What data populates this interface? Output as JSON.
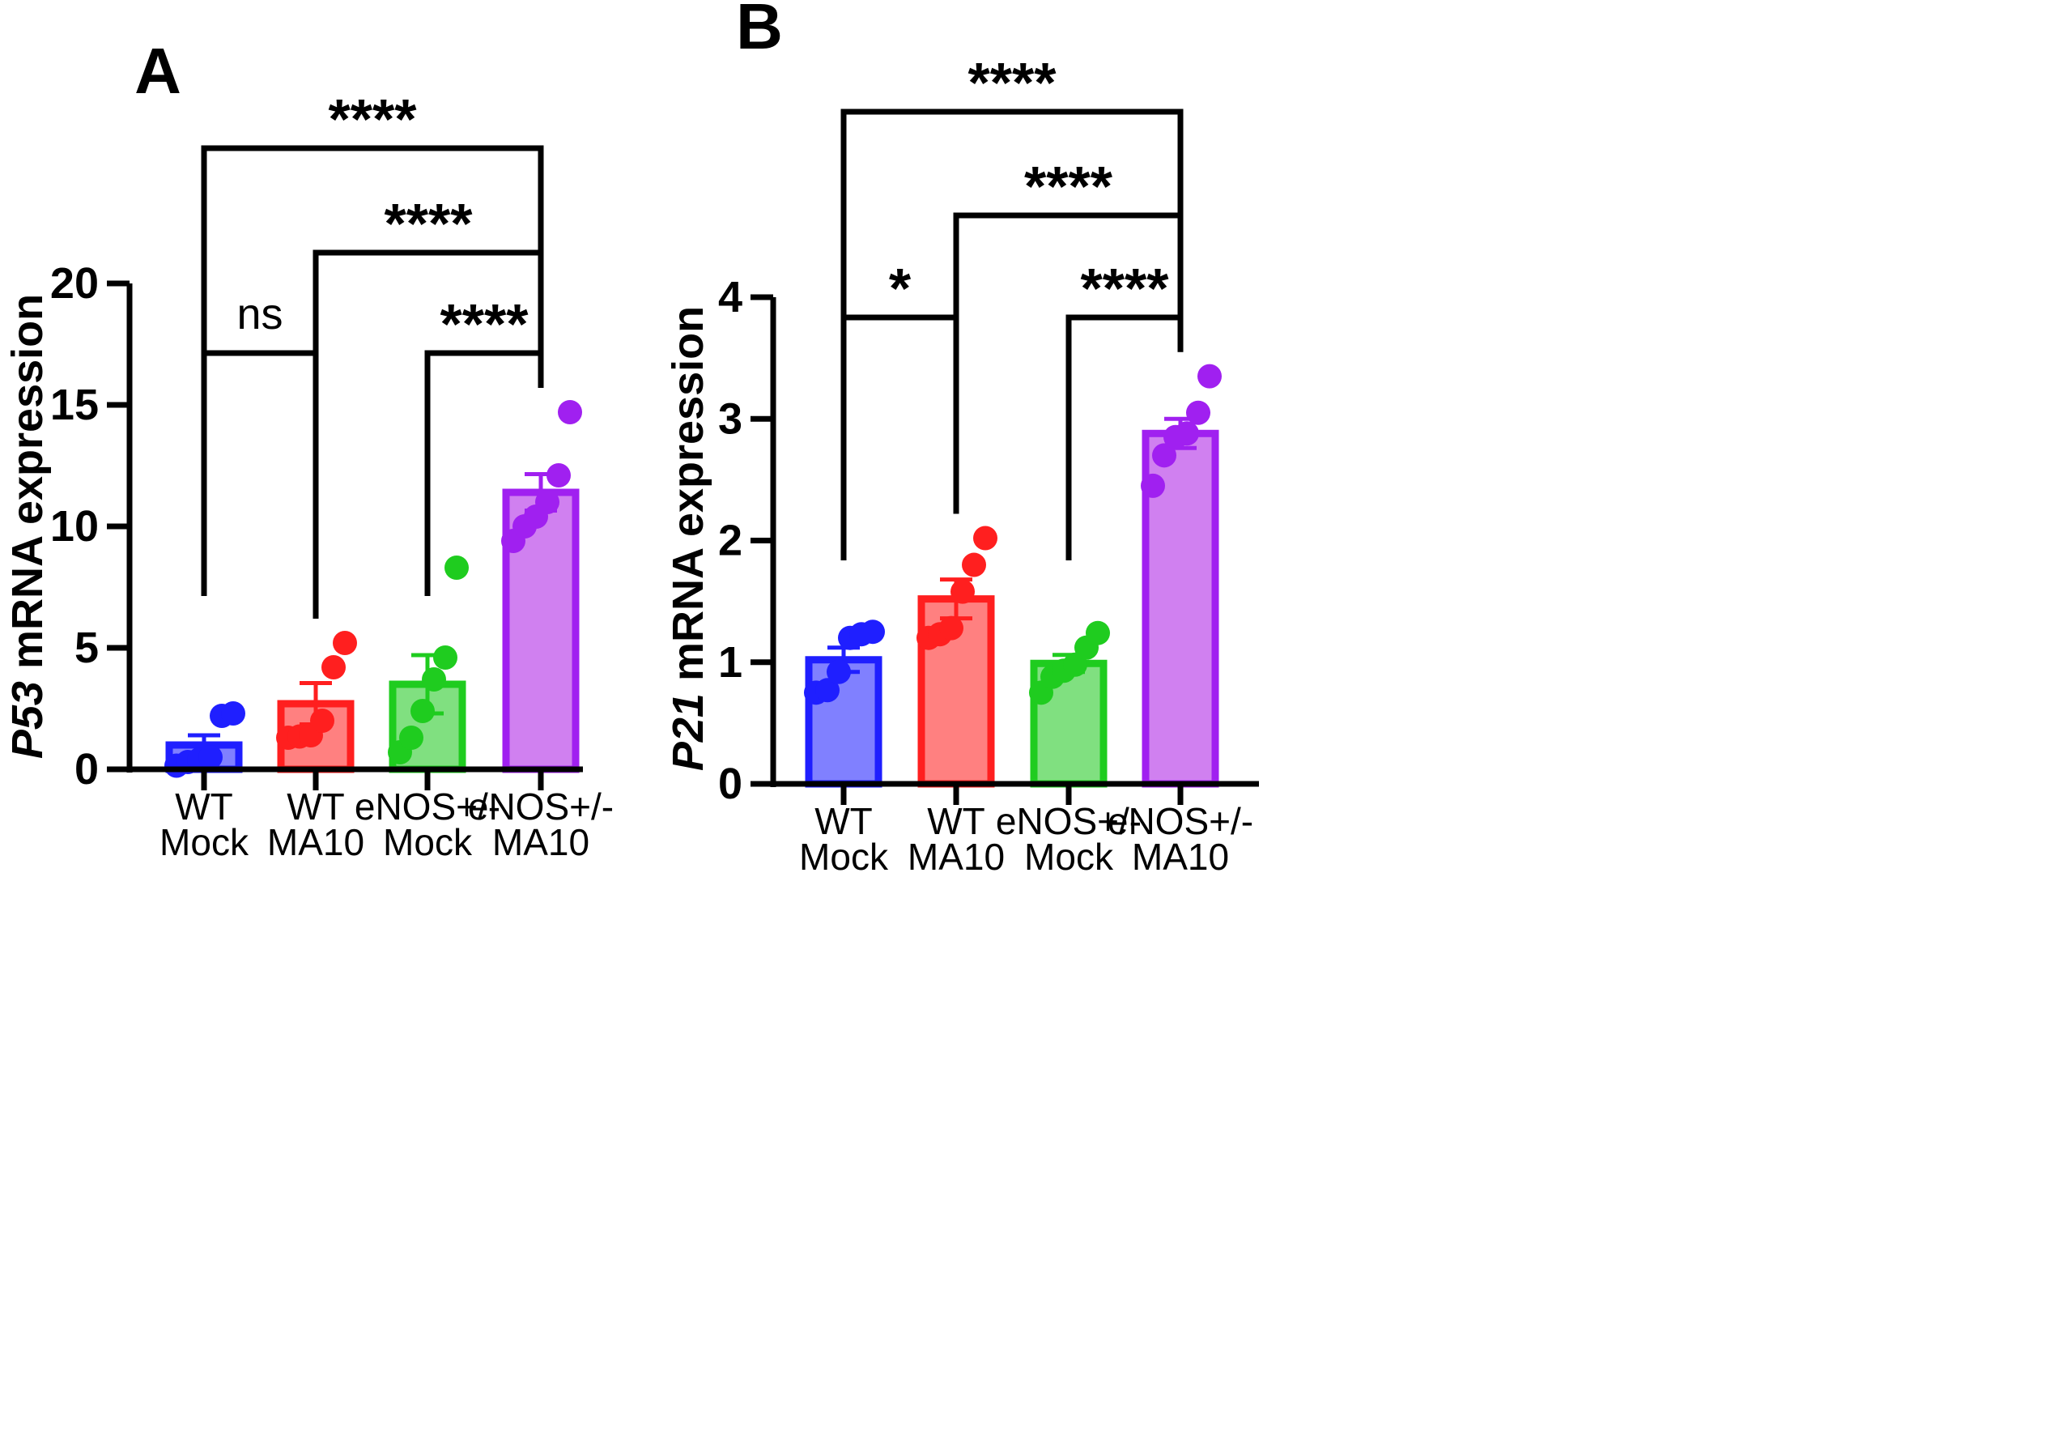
{
  "colors": {
    "blue": "#1f1fff",
    "blue_fill": "#8080ff",
    "red": "#ff1f1f",
    "red_fill": "#ff8080",
    "green": "#1fcc1f",
    "green_fill": "#80e080",
    "purple": "#a020f0",
    "purple_fill": "#d080f0"
  },
  "chart_data": [
    {
      "type": "bar",
      "panel_letter": "A",
      "ylabel_gene": "P53",
      "ylabel_rest": " mRNA expression",
      "ylim": [
        0,
        20
      ],
      "yticks": [
        "0",
        "5",
        "10",
        "15",
        "20"
      ],
      "ytick_values": [
        0,
        5,
        10,
        15,
        20
      ],
      "categories": [
        {
          "line1": "WT",
          "line2": "Mock"
        },
        {
          "line1": "WT",
          "line2": "MA10"
        },
        {
          "line1": "eNOS+/-",
          "line2": "Mock"
        },
        {
          "line1": "eNOS+/-",
          "line2": "MA10"
        }
      ],
      "values": [
        1.0,
        2.7,
        3.5,
        11.4
      ],
      "errors": [
        0.4,
        0.85,
        1.2,
        0.75
      ],
      "points": [
        [
          0.15,
          0.3,
          0.4,
          0.5,
          2.2,
          2.3
        ],
        [
          1.3,
          1.35,
          1.4,
          2.0,
          4.2,
          5.2
        ],
        [
          0.7,
          1.3,
          2.4,
          3.7,
          4.6,
          8.3
        ],
        [
          9.4,
          10.0,
          10.4,
          11.0,
          12.1,
          14.7
        ]
      ],
      "comparisons": [
        {
          "from": 0,
          "to": 1,
          "label": "ns"
        },
        {
          "from": 2,
          "to": 3,
          "label": "****"
        },
        {
          "from": 1,
          "to": 3,
          "label": "****"
        },
        {
          "from": 0,
          "to": 3,
          "label": "****"
        }
      ]
    },
    {
      "type": "bar",
      "panel_letter": "B",
      "ylabel_gene": "P21",
      "ylabel_rest": " mRNA expression",
      "ylim": [
        0,
        4
      ],
      "yticks": [
        "0",
        "1",
        "2",
        "3",
        "4"
      ],
      "ytick_values": [
        0,
        1,
        2,
        3,
        4
      ],
      "categories": [
        {
          "line1": "WT",
          "line2": "Mock"
        },
        {
          "line1": "WT",
          "line2": "MA10"
        },
        {
          "line1": "eNOS+/-",
          "line2": "Mock"
        },
        {
          "line1": "eNOS+/-",
          "line2": "MA10"
        }
      ],
      "values": [
        1.02,
        1.52,
        0.99,
        2.88
      ],
      "errors": [
        0.1,
        0.16,
        0.07,
        0.12
      ],
      "points": [
        [
          0.75,
          0.77,
          0.92,
          1.2,
          1.23,
          1.25
        ],
        [
          1.2,
          1.23,
          1.28,
          1.58,
          1.8,
          2.02
        ],
        [
          0.75,
          0.88,
          0.93,
          0.98,
          1.12,
          1.24
        ],
        [
          2.45,
          2.7,
          2.85,
          2.88,
          3.05,
          3.35
        ]
      ],
      "comparisons": [
        {
          "from": 0,
          "to": 1,
          "label": "*"
        },
        {
          "from": 2,
          "to": 3,
          "label": "****"
        },
        {
          "from": 1,
          "to": 3,
          "label": "****"
        },
        {
          "from": 0,
          "to": 3,
          "label": "****"
        }
      ]
    }
  ]
}
